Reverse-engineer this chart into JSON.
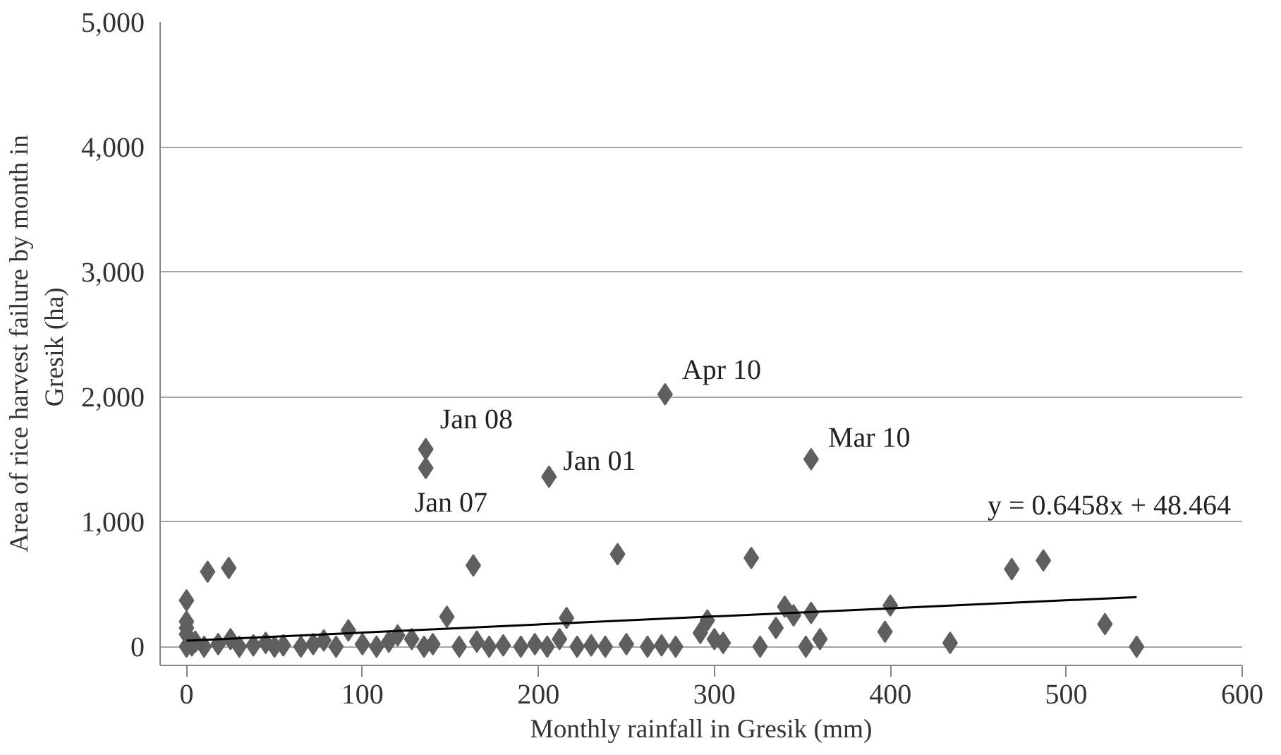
{
  "chart_data": {
    "type": "scatter",
    "xlabel": "Monthly rainfall in Gresik (mm)",
    "ylabel": "Area of rice harvest failure by month in Gresik  (ha)",
    "xlim": [
      -15,
      600
    ],
    "xticks": [
      0,
      100,
      200,
      300,
      400,
      500,
      600
    ],
    "ylim": [
      -150,
      5000
    ],
    "yticks": [
      0,
      {
        "value": 1000,
        "label": "1,000"
      },
      {
        "value": 2000,
        "label": "2,000"
      },
      {
        "value": 3000,
        "label": "3,000"
      },
      {
        "value": 4000,
        "label": "4,000"
      },
      {
        "value": 5000,
        "label": "5,000"
      }
    ],
    "grid": "y",
    "series": [
      {
        "marker": "diamond",
        "color": "#5f5f5f",
        "x": [
          0,
          0,
          0,
          0,
          0,
          3,
          5,
          12,
          24,
          10,
          18,
          25,
          30,
          38,
          45,
          50,
          55,
          65,
          72,
          78,
          85,
          92,
          100,
          108,
          115,
          120,
          128,
          135,
          140,
          148,
          155,
          163,
          165,
          172,
          180,
          190,
          198,
          205,
          212,
          216,
          222,
          230,
          238,
          245,
          250,
          262,
          270,
          278,
          292,
          296,
          300,
          305,
          321,
          326,
          335,
          340,
          345,
          352,
          355,
          360,
          397,
          400,
          434,
          469,
          487,
          522,
          540,
          136,
          136,
          206,
          272,
          355
        ],
        "values": [
          0,
          100,
          150,
          200,
          370,
          10,
          40,
          600,
          630,
          0,
          20,
          60,
          0,
          10,
          30,
          0,
          10,
          0,
          20,
          50,
          0,
          130,
          20,
          0,
          40,
          90,
          60,
          0,
          20,
          240,
          0,
          650,
          40,
          0,
          10,
          0,
          20,
          0,
          60,
          230,
          0,
          10,
          0,
          740,
          20,
          0,
          10,
          0,
          110,
          210,
          60,
          30,
          710,
          0,
          150,
          320,
          250,
          0,
          270,
          60,
          120,
          330,
          30,
          620,
          690,
          180,
          0,
          1580,
          1430,
          1360,
          2020,
          1500
        ]
      },
      {
        "type": "line",
        "color": "#000000",
        "x": [
          0,
          540
        ],
        "values": [
          48,
          397
        ]
      }
    ],
    "annotations": [
      {
        "text": "Jan 08",
        "x": 136,
        "y": 1580
      },
      {
        "text": "Jan 07",
        "x": 136,
        "y": 1430
      },
      {
        "text": "Jan 01",
        "x": 206,
        "y": 1360
      },
      {
        "text": "Apr 10",
        "x": 272,
        "y": 2020
      },
      {
        "text": "Mar 10",
        "x": 355,
        "y": 1500
      },
      "y = 0.6458x + 48.464"
    ]
  }
}
